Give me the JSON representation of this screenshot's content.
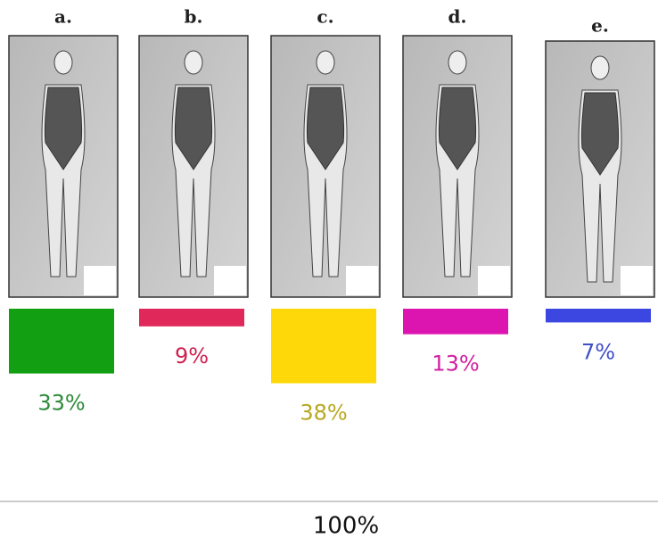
{
  "chart_data": {
    "type": "bar",
    "categories": [
      "a.",
      "b.",
      "c.",
      "d.",
      "e."
    ],
    "values": [
      33,
      9,
      38,
      13,
      7
    ],
    "value_labels": [
      "33%",
      "9%",
      "38%",
      "13%",
      "7%"
    ],
    "colors": [
      "#12a012",
      "#e0285a",
      "#ffd80a",
      "#dc14b0",
      "#3c46e0"
    ],
    "label_colors": [
      "#2e8a3a",
      "#d02050",
      "#b8a820",
      "#d020a0",
      "#4050c8"
    ],
    "total_label": "100%"
  }
}
